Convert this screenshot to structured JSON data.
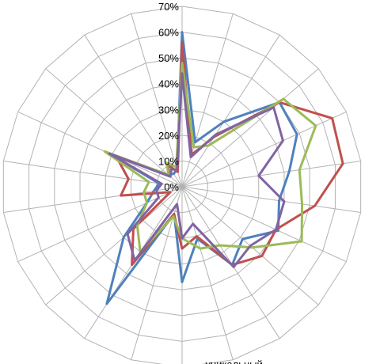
{
  "chart_data": {
    "type": "radar",
    "title": "",
    "ylim": [
      0,
      70
    ],
    "tick_labels": [
      "0%",
      "10%",
      "20%",
      "30%",
      "40%",
      "50%",
      "60%",
      "70%"
    ],
    "categories": [
      "",
      "",
      "",
      "",
      "",
      "",
      "",
      "",
      "",
      "",
      "уникальный",
      "",
      "",
      "",
      "",
      "",
      "",
      "",
      "",
      "",
      "",
      ""
    ],
    "series": [
      {
        "color": "#4f81bd",
        "values": [
          60,
          18,
          30,
          50,
          49,
          42,
          38,
          41,
          31,
          36,
          21,
          37,
          11,
          54,
          30,
          15,
          11,
          9,
          31,
          7,
          6,
          7
        ]
      },
      {
        "color": "#c0504d",
        "values": [
          56,
          13,
          23,
          50,
          64,
          63,
          52,
          40,
          41,
          36,
          20,
          24,
          11,
          36,
          25,
          5,
          24,
          21,
          28,
          7,
          10,
          6
        ]
      },
      {
        "color": "#9bbb59",
        "values": [
          48,
          16,
          19,
          52,
          57,
          46,
          47,
          51,
          36,
          27,
          25,
          20,
          12,
          30,
          23,
          15,
          15,
          13,
          33,
          7,
          11,
          8
        ]
      },
      {
        "color": "#8064a2",
        "values": [
          44,
          12,
          24,
          47,
          43,
          30,
          40,
          40,
          35,
          37,
          15,
          20,
          7,
          34,
          28,
          10,
          10,
          8,
          31,
          6,
          8,
          7
        ]
      }
    ],
    "grid": true,
    "legend": "none"
  }
}
